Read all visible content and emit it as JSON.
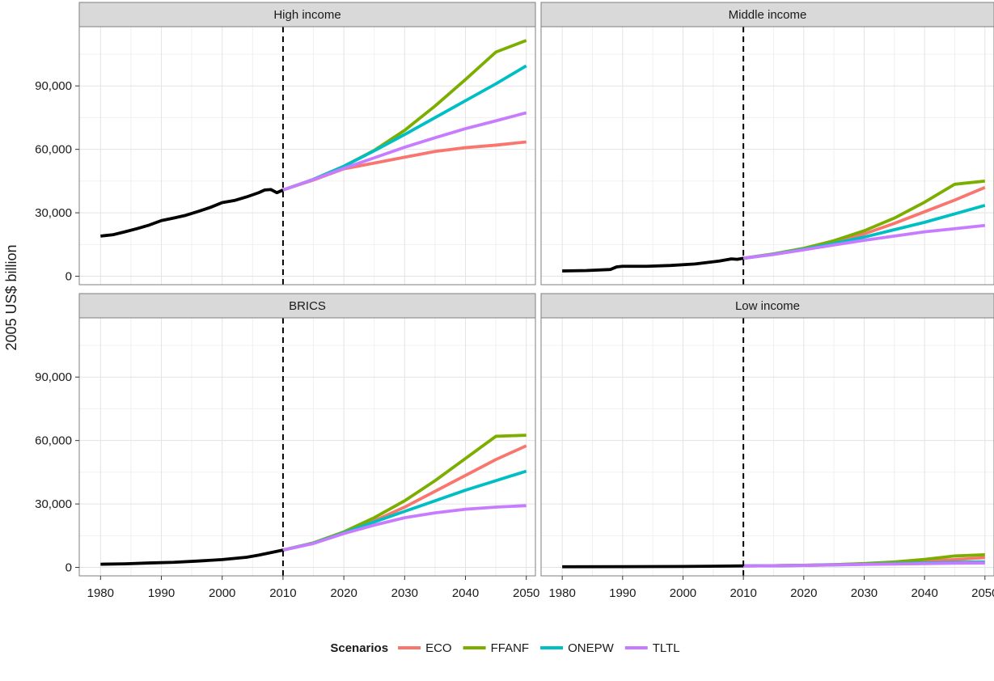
{
  "chart_data": {
    "type": "line",
    "facet_layout": "2x2",
    "ylabel": "2005 US$ billion",
    "xlabel": "",
    "xlim": [
      1976.5,
      2051.5
    ],
    "ylim": [
      -4000,
      118000
    ],
    "xticks": [
      1980,
      1990,
      2000,
      2010,
      2020,
      2030,
      2040,
      2050
    ],
    "yticks": [
      0,
      30000,
      60000,
      90000
    ],
    "ytick_labels": [
      "0",
      "30,000",
      "60,000",
      "90,000"
    ],
    "vline_x": 2010,
    "grid": true,
    "legend": {
      "title": "Scenarios",
      "placement": "bottom",
      "entries": [
        {
          "name": "ECO",
          "color": "#F8766D"
        },
        {
          "name": "FFANF",
          "color": "#7CAE00"
        },
        {
          "name": "ONEPW",
          "color": "#00BFC4"
        },
        {
          "name": "TLTL",
          "color": "#C77CFF"
        }
      ]
    },
    "historical_color": "#000000",
    "panels": [
      {
        "title": "High income",
        "historical": [
          [
            1980,
            19000
          ],
          [
            1982,
            19600
          ],
          [
            1984,
            21000
          ],
          [
            1986,
            22500
          ],
          [
            1988,
            24200
          ],
          [
            1990,
            26300
          ],
          [
            1992,
            27500
          ],
          [
            1994,
            28800
          ],
          [
            1996,
            30600
          ],
          [
            1998,
            32500
          ],
          [
            2000,
            34800
          ],
          [
            2002,
            35800
          ],
          [
            2004,
            37500
          ],
          [
            2006,
            39500
          ],
          [
            2007,
            40800
          ],
          [
            2008,
            41000
          ],
          [
            2009,
            39500
          ],
          [
            2010,
            40800
          ]
        ],
        "series": [
          {
            "name": "ECO",
            "x": [
              2010,
              2015,
              2020,
              2025,
              2030,
              2035,
              2040,
              2045,
              2050
            ],
            "values": [
              40800,
              45500,
              50800,
              53500,
              56300,
              59000,
              60800,
              62000,
              63500
            ]
          },
          {
            "name": "FFANF",
            "x": [
              2010,
              2015,
              2020,
              2025,
              2030,
              2035,
              2040,
              2045,
              2050
            ],
            "values": [
              40800,
              45800,
              52000,
              59500,
              69000,
              80500,
              93000,
              106000,
              111500
            ]
          },
          {
            "name": "ONEPW",
            "x": [
              2010,
              2015,
              2020,
              2025,
              2030,
              2035,
              2040,
              2045,
              2050
            ],
            "values": [
              40800,
              45800,
              52000,
              59300,
              67000,
              75000,
              83000,
              91000,
              99500
            ]
          },
          {
            "name": "TLTL",
            "x": [
              2010,
              2015,
              2020,
              2025,
              2030,
              2035,
              2040,
              2045,
              2050
            ],
            "values": [
              40800,
              45700,
              51000,
              56000,
              61000,
              65500,
              69800,
              73500,
              77300
            ]
          }
        ]
      },
      {
        "title": "Middle income",
        "historical": [
          [
            1980,
            2500
          ],
          [
            1984,
            2700
          ],
          [
            1988,
            3200
          ],
          [
            1989,
            4400
          ],
          [
            1990,
            4700
          ],
          [
            1994,
            4700
          ],
          [
            1998,
            5100
          ],
          [
            2002,
            5800
          ],
          [
            2006,
            7200
          ],
          [
            2008,
            8200
          ],
          [
            2009,
            8000
          ],
          [
            2010,
            8500
          ]
        ],
        "series": [
          {
            "name": "ECO",
            "x": [
              2010,
              2015,
              2020,
              2025,
              2030,
              2035,
              2040,
              2045,
              2050
            ],
            "values": [
              8500,
              10500,
              13000,
              16000,
              20000,
              25000,
              30500,
              36000,
              42000
            ]
          },
          {
            "name": "FFANF",
            "x": [
              2010,
              2015,
              2020,
              2025,
              2030,
              2035,
              2040,
              2045,
              2050
            ],
            "values": [
              8500,
              10600,
              13200,
              16800,
              21500,
              27500,
              35000,
              43500,
              45000
            ]
          },
          {
            "name": "ONEPW",
            "x": [
              2010,
              2015,
              2020,
              2025,
              2030,
              2035,
              2040,
              2045,
              2050
            ],
            "values": [
              8500,
              10400,
              12800,
              15500,
              18500,
              22000,
              25500,
              29500,
              33500
            ]
          },
          {
            "name": "TLTL",
            "x": [
              2010,
              2015,
              2020,
              2025,
              2030,
              2035,
              2040,
              2045,
              2050
            ],
            "values": [
              8500,
              10300,
              12500,
              14800,
              17000,
              19000,
              21000,
              22500,
              24000
            ]
          }
        ]
      },
      {
        "title": "BRICS",
        "historical": [
          [
            1980,
            1500
          ],
          [
            1984,
            1700
          ],
          [
            1988,
            2100
          ],
          [
            1992,
            2400
          ],
          [
            1996,
            3000
          ],
          [
            2000,
            3700
          ],
          [
            2004,
            4800
          ],
          [
            2006,
            5800
          ],
          [
            2008,
            7000
          ],
          [
            2010,
            8200
          ]
        ],
        "series": [
          {
            "name": "ECO",
            "x": [
              2010,
              2015,
              2020,
              2025,
              2030,
              2035,
              2040,
              2045,
              2050
            ],
            "values": [
              8200,
              11500,
              16500,
              22000,
              28500,
              36000,
              43500,
              51000,
              57500
            ]
          },
          {
            "name": "FFANF",
            "x": [
              2010,
              2015,
              2020,
              2025,
              2030,
              2035,
              2040,
              2045,
              2050
            ],
            "values": [
              8200,
              11600,
              16800,
              23500,
              31500,
              41000,
              51500,
              62000,
              62500
            ]
          },
          {
            "name": "ONEPW",
            "x": [
              2010,
              2015,
              2020,
              2025,
              2030,
              2035,
              2040,
              2045,
              2050
            ],
            "values": [
              8200,
              11400,
              16300,
              21500,
              26500,
              31500,
              36500,
              41000,
              45500
            ]
          },
          {
            "name": "TLTL",
            "x": [
              2010,
              2015,
              2020,
              2025,
              2030,
              2035,
              2040,
              2045,
              2050
            ],
            "values": [
              8200,
              11300,
              16000,
              20000,
              23500,
              25800,
              27500,
              28500,
              29200
            ]
          }
        ]
      },
      {
        "title": "Low income",
        "historical": [
          [
            1980,
            300
          ],
          [
            1990,
            350
          ],
          [
            2000,
            450
          ],
          [
            2010,
            700
          ]
        ],
        "series": [
          {
            "name": "ECO",
            "x": [
              2010,
              2015,
              2020,
              2025,
              2030,
              2035,
              2040,
              2045,
              2050
            ],
            "values": [
              700,
              800,
              1000,
              1300,
              1700,
              2200,
              2900,
              3700,
              4600
            ]
          },
          {
            "name": "FFANF",
            "x": [
              2010,
              2015,
              2020,
              2025,
              2030,
              2035,
              2040,
              2045,
              2050
            ],
            "values": [
              700,
              800,
              1000,
              1300,
              1800,
              2600,
              3800,
              5400,
              6000
            ]
          },
          {
            "name": "ONEPW",
            "x": [
              2010,
              2015,
              2020,
              2025,
              2030,
              2035,
              2040,
              2045,
              2050
            ],
            "values": [
              700,
              800,
              950,
              1200,
              1500,
              1800,
              2100,
              2400,
              2600
            ]
          },
          {
            "name": "TLTL",
            "x": [
              2010,
              2015,
              2020,
              2025,
              2030,
              2035,
              2040,
              2045,
              2050
            ],
            "values": [
              700,
              800,
              950,
              1150,
              1400,
              1600,
              1800,
              2000,
              2100
            ]
          }
        ]
      }
    ]
  }
}
